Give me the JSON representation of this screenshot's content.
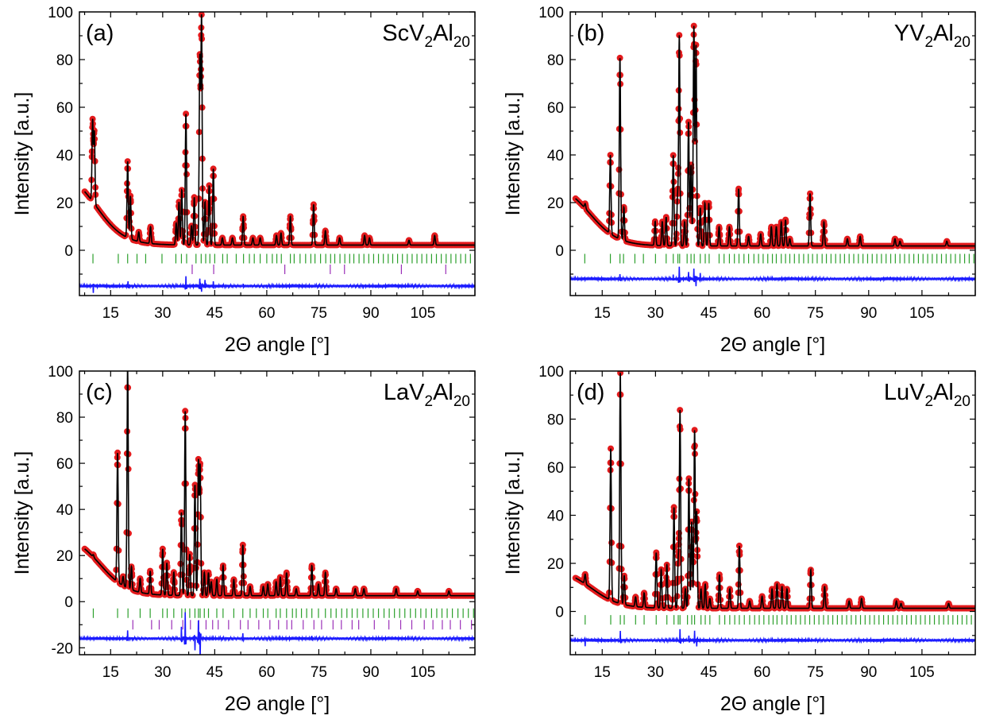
{
  "figure": {
    "colors": {
      "observed": "#e31a1c",
      "calculated": "#000000",
      "difference": "#1a1aff",
      "reflections_main": "#2ca02c",
      "reflections_secondary": "#9b30b8"
    }
  },
  "chart_data": [
    {
      "type": "line",
      "panel": "(a)",
      "compound": {
        "base": "ScV",
        "sub1": "2",
        "mid": "Al",
        "sub2": "20"
      },
      "xlabel": "2Θ angle [°]",
      "ylabel": "Intensity [a.u.]",
      "xlim": [
        6,
        120
      ],
      "ylim": [
        -19,
        100
      ],
      "xticks": [
        "15",
        "30",
        "45",
        "60",
        "75",
        "90",
        "105"
      ],
      "yticks": [
        "0",
        "20",
        "40",
        "60",
        "80",
        "100"
      ],
      "background": {
        "plateau": 34,
        "tail": 2.2,
        "edge": 11,
        "width": 4
      },
      "peaks": [
        [
          9.8,
          34
        ],
        [
          10.3,
          30
        ],
        [
          19.9,
          32
        ],
        [
          20.7,
          18
        ],
        [
          23.1,
          4
        ],
        [
          26.5,
          7
        ],
        [
          33.9,
          9
        ],
        [
          34.7,
          18
        ],
        [
          35.5,
          23
        ],
        [
          36.7,
          55
        ],
        [
          38.3,
          8
        ],
        [
          39.1,
          20
        ],
        [
          40.7,
          78
        ],
        [
          41.2,
          95
        ],
        [
          42.2,
          18
        ],
        [
          43.4,
          25
        ],
        [
          44.6,
          32
        ],
        [
          47.2,
          3
        ],
        [
          50.1,
          3
        ],
        [
          53.2,
          12
        ],
        [
          56.0,
          3
        ],
        [
          58.1,
          3
        ],
        [
          62.8,
          4
        ],
        [
          64.1,
          5
        ],
        [
          66.8,
          12
        ],
        [
          73.5,
          17
        ],
        [
          76.9,
          6
        ],
        [
          81.0,
          3
        ],
        [
          88.2,
          4
        ],
        [
          89.6,
          3
        ],
        [
          101.0,
          2
        ],
        [
          108.4,
          4
        ]
      ],
      "ticks_main": {
        "y": -3.5,
        "positions": [
          9.9,
          17.2,
          19.9,
          22.6,
          25.1,
          29.8,
          33.8,
          35.4,
          36.9,
          39.6,
          41.1,
          42.4,
          43.6,
          45.0,
          47.3,
          48.6,
          51.2,
          53.3,
          55.0,
          56.4,
          58.1,
          60.0,
          61.6,
          62.9,
          64.2,
          66.8,
          67.9,
          69.6,
          71.2,
          72.7,
          73.9,
          75.5,
          77.0,
          78.4,
          79.6,
          81.1,
          82.5,
          83.9,
          85.1,
          86.6,
          88.0,
          89.4,
          90.8,
          92.2,
          93.6,
          95.0,
          96.3,
          97.7,
          99.1,
          100.5,
          101.9,
          103.3,
          104.7,
          106.1,
          107.5,
          108.9,
          110.3,
          111.7,
          113.1,
          114.5,
          115.9,
          117.3,
          118.7
        ]
      },
      "ticks_secondary": {
        "y": -8.0,
        "positions": [
          38.5,
          44.7,
          65.2,
          78.3,
          82.4,
          98.8,
          111.6
        ]
      },
      "difference": {
        "offset": -15,
        "spikes": [
          [
            10.0,
            -3
          ],
          [
            20.0,
            2
          ],
          [
            36.7,
            4
          ],
          [
            40.7,
            3
          ],
          [
            41.2,
            -3
          ],
          [
            42.2,
            2
          ],
          [
            44.6,
            1.5
          ],
          [
            53.2,
            1
          ]
        ]
      }
    },
    {
      "type": "line",
      "panel": "(b)",
      "compound": {
        "base": "YV",
        "sub1": "2",
        "mid": "Al",
        "sub2": "20"
      },
      "xlabel": "2Θ angle [°]",
      "ylabel": "Intensity [a.u.]",
      "xlim": [
        6,
        120
      ],
      "ylim": [
        -19,
        100
      ],
      "xticks": [
        "15",
        "30",
        "45",
        "60",
        "75",
        "90",
        "105"
      ],
      "yticks": [
        "0",
        "20",
        "40",
        "60",
        "80",
        "100"
      ],
      "background": {
        "plateau": 29,
        "tail": 1.8,
        "edge": 11.5,
        "width": 4
      },
      "peaks": [
        [
          10.2,
          2
        ],
        [
          17.3,
          33
        ],
        [
          20.0,
          76
        ],
        [
          21.1,
          14
        ],
        [
          29.9,
          10
        ],
        [
          31.9,
          10
        ],
        [
          33.0,
          12
        ],
        [
          35.0,
          38
        ],
        [
          36.2,
          20
        ],
        [
          36.7,
          88
        ],
        [
          38.2,
          10
        ],
        [
          39.3,
          52
        ],
        [
          40.0,
          34
        ],
        [
          40.8,
          92
        ],
        [
          41.4,
          84
        ],
        [
          42.6,
          16
        ],
        [
          43.9,
          18
        ],
        [
          45.0,
          18
        ],
        [
          47.9,
          8
        ],
        [
          50.8,
          8
        ],
        [
          53.4,
          24
        ],
        [
          56.2,
          4
        ],
        [
          59.6,
          5
        ],
        [
          62.6,
          8
        ],
        [
          64.0,
          8
        ],
        [
          65.4,
          10
        ],
        [
          66.6,
          11
        ],
        [
          67.8,
          3
        ],
        [
          73.5,
          22
        ],
        [
          77.4,
          10
        ],
        [
          84.0,
          3
        ],
        [
          87.6,
          4
        ],
        [
          97.4,
          3
        ],
        [
          98.8,
          2
        ],
        [
          112.0,
          2
        ]
      ],
      "ticks_main": {
        "y": -3.5,
        "positions": [
          10.1,
          17.3,
          20.0,
          21.0,
          24.2,
          26.6,
          30.0,
          33.0,
          35.0,
          36.3,
          36.8,
          38.9,
          40.0,
          40.9,
          42.6,
          44.0,
          45.1,
          47.9,
          49.3,
          50.8,
          52.2,
          53.5,
          54.9,
          56.2,
          57.7,
          59.0,
          60.3,
          61.6,
          62.9,
          64.0,
          65.4,
          66.6,
          67.8,
          69.1,
          70.4,
          71.7,
          73.0,
          74.2,
          75.5,
          76.9,
          78.1,
          79.4,
          80.7,
          82.0,
          83.2,
          84.5,
          85.8,
          87.1,
          88.4,
          89.7,
          91.0,
          92.3,
          93.6,
          94.9,
          96.2,
          97.5,
          98.8,
          100.1,
          101.4,
          102.7,
          104.0,
          105.3,
          106.6,
          107.9,
          109.2,
          110.5,
          111.8,
          113.1,
          114.4,
          115.7,
          117.0,
          118.3,
          119.6
        ]
      },
      "ticks_secondary": null,
      "difference": {
        "offset": -12,
        "spikes": [
          [
            20.0,
            2
          ],
          [
            35.0,
            2
          ],
          [
            36.7,
            5
          ],
          [
            39.3,
            3
          ],
          [
            40.8,
            4
          ],
          [
            41.4,
            -3
          ],
          [
            42.6,
            2
          ]
        ]
      }
    },
    {
      "type": "line",
      "panel": "(c)",
      "compound": {
        "base": "LaV",
        "sub1": "2",
        "mid": "Al",
        "sub2": "20"
      },
      "xlabel": "2Θ angle [°]",
      "ylabel": "Intensity [a.u.]",
      "xlim": [
        6,
        120
      ],
      "ylim": [
        -23,
        100
      ],
      "xticks": [
        "15",
        "30",
        "45",
        "60",
        "75",
        "90",
        "105"
      ],
      "yticks": [
        "-20",
        "0",
        "20",
        "40",
        "60",
        "80",
        "100"
      ],
      "background": {
        "plateau": 29.5,
        "tail": 2.6,
        "edge": 12,
        "width": 4
      },
      "peaks": [
        [
          10.0,
          1
        ],
        [
          17.0,
          56
        ],
        [
          18.6,
          4
        ],
        [
          19.9,
          96
        ],
        [
          21.0,
          10
        ],
        [
          23.5,
          6
        ],
        [
          26.4,
          10
        ],
        [
          30.0,
          20
        ],
        [
          31.2,
          14
        ],
        [
          33.2,
          10
        ],
        [
          35.4,
          36
        ],
        [
          36.5,
          80
        ],
        [
          37.8,
          18
        ],
        [
          39.3,
          48
        ],
        [
          40.3,
          58
        ],
        [
          40.8,
          56
        ],
        [
          42.0,
          10
        ],
        [
          43.2,
          10
        ],
        [
          44.0,
          6
        ],
        [
          45.6,
          7
        ],
        [
          47.4,
          13
        ],
        [
          50.5,
          7
        ],
        [
          53.1,
          22
        ],
        [
          55.2,
          4
        ],
        [
          59.0,
          4
        ],
        [
          60.3,
          5
        ],
        [
          62.7,
          6
        ],
        [
          63.9,
          8
        ],
        [
          65.7,
          10
        ],
        [
          68.5,
          3
        ],
        [
          73.0,
          13
        ],
        [
          74.9,
          5
        ],
        [
          76.9,
          10
        ],
        [
          80.0,
          3
        ],
        [
          85.5,
          3
        ],
        [
          88.0,
          3
        ],
        [
          97.3,
          3
        ],
        [
          103.5,
          2
        ],
        [
          112.5,
          2
        ]
      ],
      "ticks_main": {
        "y": -5,
        "positions": [
          10.0,
          17.0,
          20.0,
          23.5,
          26.4,
          30.0,
          31.3,
          33.2,
          35.5,
          36.5,
          37.8,
          39.3,
          40.3,
          40.8,
          42.0,
          43.2,
          45.6,
          47.4,
          50.5,
          53.1,
          55.2,
          57.0,
          59.0,
          60.3,
          62.7,
          63.9,
          65.7,
          67.4,
          68.5,
          70.0,
          71.5,
          73.0,
          74.9,
          76.9,
          78.5,
          80.0,
          81.6,
          83.1,
          84.6,
          86.1,
          87.7,
          89.2,
          90.7,
          92.2,
          93.8,
          95.3,
          96.8,
          98.3,
          99.8,
          101.4,
          102.9,
          104.4,
          105.9,
          107.5,
          109.0,
          110.5,
          112.0,
          113.5,
          115.1,
          116.6,
          118.1,
          119.6
        ]
      },
      "ticks_secondary": {
        "y": -10,
        "positions": [
          21.4,
          26.8,
          29.0,
          32.6,
          35.8,
          38.0,
          40.4,
          42.5,
          44.4,
          46.0,
          49.0,
          52.4,
          54.6,
          57.7,
          60.9,
          63.4,
          65.8,
          67.2,
          70.5,
          73.6,
          75.8,
          79.1,
          81.5,
          84.6,
          86.5,
          91.0,
          95.2,
          98.6,
          101.8,
          105.4,
          107.9,
          110.6,
          112.9,
          115.8,
          119.0
        ]
      },
      "difference": {
        "offset": -16,
        "spikes": [
          [
            19.9,
            3
          ],
          [
            35.4,
            5
          ],
          [
            36.5,
            12
          ],
          [
            39.3,
            -5
          ],
          [
            40.3,
            8
          ],
          [
            40.8,
            -10
          ],
          [
            53.1,
            2
          ],
          [
            73.0,
            1.5
          ]
        ]
      }
    },
    {
      "type": "line",
      "panel": "(d)",
      "compound": {
        "base": "LuV",
        "sub1": "2",
        "mid": "Al",
        "sub2": "20"
      },
      "xlabel": "2Θ angle [°]",
      "ylabel": "Intensity [a.u.]",
      "xlim": [
        6,
        120
      ],
      "ylim": [
        -18,
        100
      ],
      "xticks": [
        "15",
        "30",
        "45",
        "60",
        "75",
        "90",
        "105"
      ],
      "yticks": [
        "0",
        "20",
        "40",
        "60",
        "80",
        "100"
      ],
      "background": {
        "plateau": 18,
        "tail": 1.3,
        "edge": 12,
        "width": 4
      },
      "peaks": [
        [
          10.2,
          4
        ],
        [
          17.4,
          63
        ],
        [
          20.1,
          96
        ],
        [
          21.2,
          12
        ],
        [
          24.4,
          4
        ],
        [
          26.8,
          6
        ],
        [
          30.2,
          23
        ],
        [
          31.6,
          16
        ],
        [
          33.2,
          18
        ],
        [
          35.2,
          42
        ],
        [
          36.4,
          20
        ],
        [
          36.9,
          82
        ],
        [
          38.4,
          8
        ],
        [
          39.4,
          54
        ],
        [
          40.2,
          36
        ],
        [
          41.0,
          74
        ],
        [
          41.6,
          40
        ],
        [
          42.8,
          8
        ],
        [
          44.0,
          10
        ],
        [
          45.3,
          4
        ],
        [
          48.0,
          14
        ],
        [
          50.9,
          8
        ],
        [
          53.6,
          26
        ],
        [
          56.5,
          3
        ],
        [
          60.0,
          5
        ],
        [
          62.8,
          8
        ],
        [
          64.2,
          10
        ],
        [
          65.6,
          9
        ],
        [
          67.0,
          8
        ],
        [
          73.7,
          16
        ],
        [
          77.6,
          9
        ],
        [
          84.5,
          3
        ],
        [
          88.0,
          4
        ],
        [
          97.8,
          3
        ],
        [
          99.1,
          2
        ],
        [
          112.5,
          2
        ]
      ],
      "ticks_main": {
        "y": -3.5,
        "positions": [
          10.2,
          17.4,
          20.1,
          21.2,
          24.4,
          26.8,
          30.2,
          33.2,
          35.2,
          36.4,
          36.9,
          39.0,
          40.2,
          41.0,
          42.8,
          44.0,
          45.3,
          48.0,
          49.5,
          50.9,
          52.3,
          53.6,
          55.0,
          56.5,
          57.9,
          59.2,
          60.5,
          61.9,
          63.1,
          64.2,
          65.6,
          67.0,
          68.2,
          69.5,
          70.8,
          72.1,
          73.4,
          74.7,
          76.0,
          77.3,
          78.6,
          79.9,
          81.2,
          82.5,
          83.8,
          85.1,
          86.4,
          87.7,
          89.0,
          90.3,
          91.6,
          92.9,
          94.2,
          95.5,
          96.8,
          98.1,
          99.4,
          100.7,
          102.0,
          103.3,
          104.6,
          105.9,
          107.2,
          108.5,
          109.8,
          111.1,
          112.4,
          113.7,
          115.0,
          116.3,
          117.6,
          118.9
        ]
      },
      "ticks_secondary": null,
      "difference": {
        "offset": -12,
        "spikes": [
          [
            10.2,
            -2
          ],
          [
            20.1,
            4
          ],
          [
            36.9,
            5
          ],
          [
            39.4,
            2
          ],
          [
            41.0,
            4
          ],
          [
            41.6,
            -3
          ]
        ]
      }
    }
  ]
}
